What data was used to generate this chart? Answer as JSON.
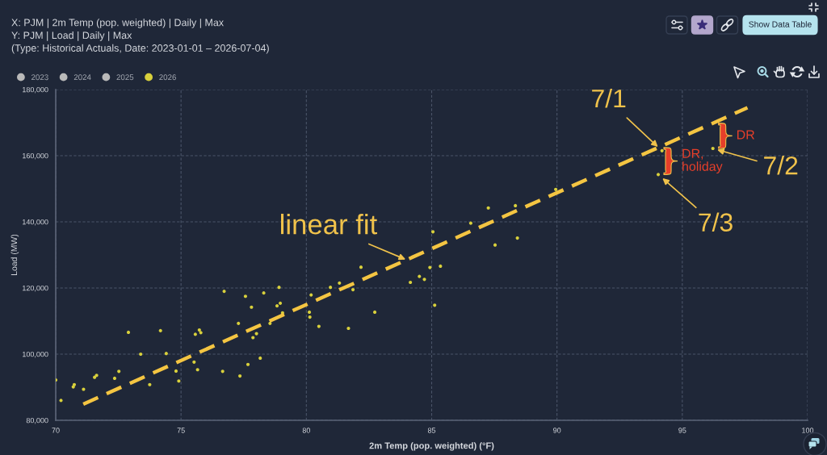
{
  "chart_data": {
    "type": "scatter",
    "title": "X: PJM | 2m Temp (pop. weighted) | Daily | Max",
    "subtitle": "Y: PJM | Load | Daily | Max\n(Type: Historical Actuals, Date: 2023-01-01 – 2026-07-04)",
    "xlabel": "2m Temp (pop. weighted) (°F)",
    "ylabel": "Load (MW)",
    "xlim": [
      70,
      100
    ],
    "xticks": [
      70,
      75,
      80,
      85,
      90,
      95,
      100
    ],
    "ylim": [
      80000,
      180000
    ],
    "yticks": [
      {
        "value": 80000,
        "label": "80,000"
      },
      {
        "value": 100000,
        "label": "100,000"
      },
      {
        "value": 120000,
        "label": "120,000"
      },
      {
        "value": 140000,
        "label": "140,000"
      },
      {
        "value": 160000,
        "label": "160,000"
      },
      {
        "value": 180000,
        "label": "180,000"
      }
    ],
    "grid": true,
    "legend": "top left",
    "marker": "circle",
    "series": [
      {
        "name": "2023",
        "color": "#b9b9b9"
      },
      {
        "name": "2024",
        "color": "#b9b9b9"
      },
      {
        "name": "2025",
        "color": "#b9b9b9"
      },
      {
        "name": "2026",
        "color": "#d8d03c",
        "x": [
          70.0,
          70.21,
          70.7,
          70.74,
          71.11,
          71.55,
          71.63,
          72.35,
          72.52,
          72.9,
          73.39,
          73.75,
          74.18,
          74.41,
          74.8,
          74.91,
          75.52,
          75.57,
          75.66,
          75.73,
          75.79,
          76.66,
          76.72,
          77.29,
          77.35,
          77.57,
          77.67,
          77.81,
          77.87,
          78.01,
          78.16,
          78.3,
          78.55,
          78.83,
          78.91,
          78.96,
          79.05,
          80.12,
          80.14,
          80.19,
          80.5,
          80.96,
          81.32,
          81.68,
          81.86,
          82.18,
          82.73,
          84.15,
          84.51,
          84.71,
          84.93,
          85.05,
          85.12,
          85.35,
          86.56,
          87.26,
          87.53,
          88.34,
          88.42,
          89.95,
          94.04,
          94.19,
          96.22
        ],
        "values": [
          92200,
          86000,
          90100,
          90800,
          89400,
          93000,
          93600,
          92700,
          94800,
          106600,
          100000,
          90800,
          107100,
          100200,
          94900,
          91900,
          97600,
          106000,
          95300,
          107300,
          106500,
          94800,
          119000,
          109300,
          93400,
          117500,
          96900,
          114200,
          105000,
          106200,
          98800,
          118500,
          109300,
          114600,
          120200,
          115400,
          112500,
          112700,
          111200,
          117900,
          108400,
          120200,
          121500,
          107800,
          119500,
          126300,
          112700,
          121700,
          123500,
          122600,
          126200,
          137000,
          114800,
          126600,
          139600,
          144200,
          133000,
          144900,
          135100,
          149800,
          154300,
          161500,
          162200
        ]
      },
      {
        "type": "line",
        "color": "#f4c542",
        "x": [
          71.1,
          97.6
        ],
        "values": [
          84900,
          174500
        ],
        "line_style": "dashed",
        "marker": "none"
      }
    ],
    "annotations": [
      {
        "text": "linear fit",
        "x": 84.0,
        "y": 128500
      },
      {
        "text": "7/1",
        "x": 94.19,
        "y": 161500
      },
      {
        "text": "7/2",
        "x": 96.22,
        "y": 162200
      },
      {
        "text": "7/3",
        "x": 94.04,
        "y": 154300
      },
      {
        "text": "DR, holiday",
        "x": 94.04,
        "y": 154300
      },
      {
        "text": "DR",
        "x": 96.22,
        "y": 162200
      },
      "Show Data Table"
    ]
  }
}
